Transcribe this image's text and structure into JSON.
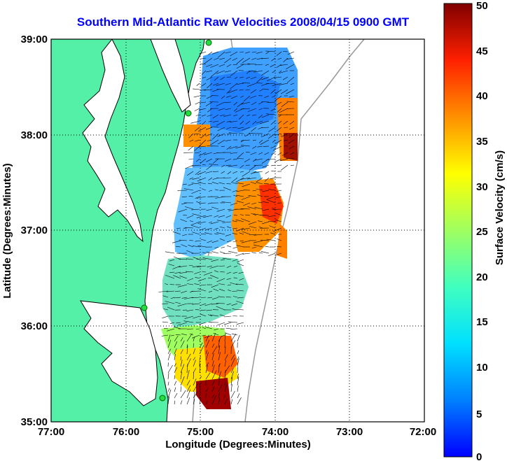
{
  "title": "Southern Mid-Atlantic Raw Velocities 2008/04/15 0900 GMT",
  "x_axis": {
    "label": "Longitude (Degrees:Minutes)",
    "ticks": [
      "77:00",
      "76:00",
      "75:00",
      "74:00",
      "73:00",
      "72:00"
    ],
    "range": [
      -77,
      -72
    ]
  },
  "y_axis": {
    "label": "Latitude (Degrees:Minutes)",
    "ticks": [
      "35:00",
      "36:00",
      "37:00",
      "38:00",
      "39:00"
    ],
    "range": [
      35,
      39
    ]
  },
  "colorbar": {
    "label": "Surface Velocity (cm/s)",
    "ticks": [
      "0",
      "5",
      "10",
      "15",
      "20",
      "25",
      "30",
      "35",
      "40",
      "45",
      "50"
    ],
    "range": [
      0,
      50
    ],
    "colormap": "jet"
  },
  "grid": "dotted",
  "colors": {
    "land": "#55f0a8",
    "coastline": "#000000",
    "bathymetry": "#999999",
    "station": "#22dd44",
    "title": "#0000ff"
  }
}
